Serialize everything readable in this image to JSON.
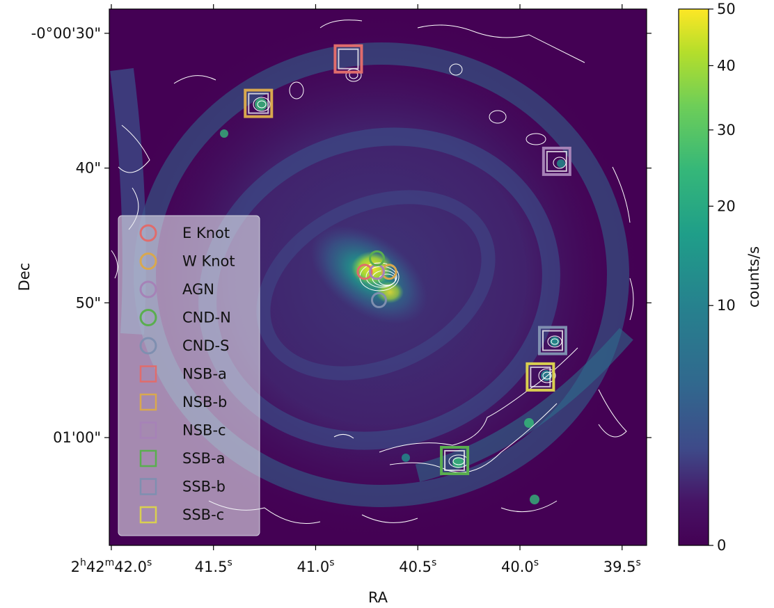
{
  "chart_data": {
    "type": "heatmap",
    "title": "",
    "xlabel": "RA",
    "ylabel": "Dec",
    "x_ticks": [
      {
        "value": 42.0,
        "prefix": "2",
        "h": "h",
        "mid": "42",
        "m": "m",
        "main": "42.0",
        "s": "s"
      },
      {
        "value": 41.5,
        "main": "41.5",
        "s": "s"
      },
      {
        "value": 41.0,
        "main": "41.0",
        "s": "s"
      },
      {
        "value": 40.5,
        "main": "40.5",
        "s": "s"
      },
      {
        "value": 40.0,
        "main": "40.0",
        "s": "s"
      },
      {
        "value": 39.5,
        "main": "39.5",
        "s": "s"
      }
    ],
    "y_ticks": [
      {
        "value": 30,
        "label": "-0°00'30\""
      },
      {
        "value": 40,
        "label": "40\""
      },
      {
        "value": 50,
        "label": "50\""
      },
      {
        "value": 60,
        "label": "01'00\""
      }
    ],
    "x_range_seconds": [
      42.01,
      39.38
    ],
    "y_range_arcsec": [
      28.2,
      68.0
    ],
    "colorbar": {
      "label": "counts/s",
      "colormap": "viridis",
      "scale": "sqrt",
      "range": [
        0,
        50
      ],
      "ticks": [
        {
          "value": 0,
          "label": "0"
        },
        {
          "value": 10,
          "label": "10"
        },
        {
          "value": 20,
          "label": "20"
        },
        {
          "value": 30,
          "label": "30"
        },
        {
          "value": 40,
          "label": "40"
        },
        {
          "value": 50,
          "label": "50"
        }
      ]
    },
    "markers": [
      {
        "name": "E Knot",
        "shape": "circle",
        "color": "#e06c6c",
        "ra_s": 40.76,
        "dec": 47.7
      },
      {
        "name": "W Knot",
        "shape": "circle",
        "color": "#d9a84e",
        "ra_s": 40.64,
        "dec": 47.7
      },
      {
        "name": "AGN",
        "shape": "circle",
        "color": "#a682b7",
        "ra_s": 40.7,
        "dec": 47.7
      },
      {
        "name": "CND-N",
        "shape": "circle",
        "color": "#5aae4f",
        "ra_s": 40.7,
        "dec": 46.7
      },
      {
        "name": "CND-S",
        "shape": "circle",
        "color": "#7f8fb0",
        "ra_s": 40.69,
        "dec": 49.8
      },
      {
        "name": "NSB-a",
        "shape": "square",
        "color": "#e06c6c",
        "ra_s": 40.84,
        "dec": 31.9
      },
      {
        "name": "NSB-b",
        "shape": "square",
        "color": "#d9a84e",
        "ra_s": 41.28,
        "dec": 35.2
      },
      {
        "name": "NSB-c",
        "shape": "square",
        "color": "#a682b7",
        "ra_s": 39.82,
        "dec": 39.5
      },
      {
        "name": "SSB-a",
        "shape": "square",
        "color": "#5aae4f",
        "ra_s": 40.32,
        "dec": 61.7
      },
      {
        "name": "SSB-b",
        "shape": "square",
        "color": "#7f8fb0",
        "ra_s": 39.84,
        "dec": 52.8
      },
      {
        "name": "SSB-c",
        "shape": "square",
        "color": "#d9cf50",
        "ra_s": 39.9,
        "dec": 55.5
      }
    ],
    "legend": {
      "placement": "center-left"
    },
    "contours": {
      "color": "#ffffff"
    }
  }
}
